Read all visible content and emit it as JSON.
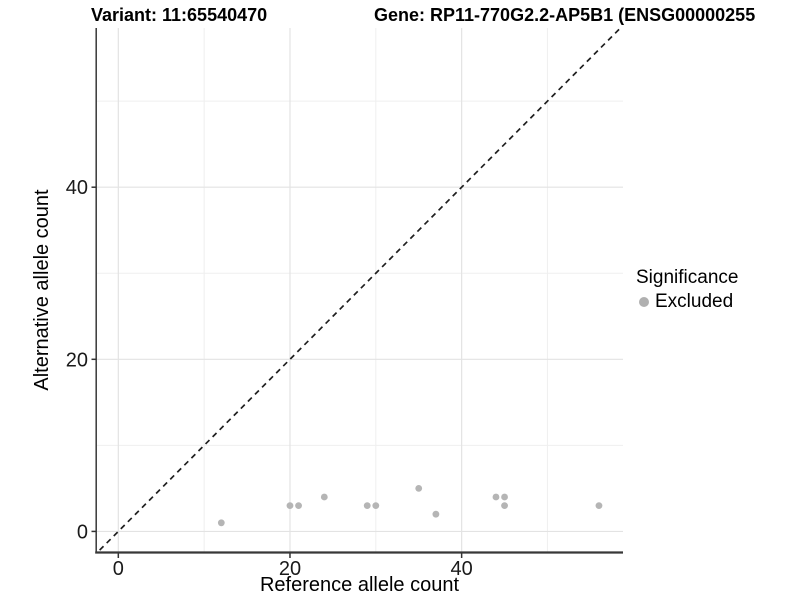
{
  "titles": {
    "left": "Variant: 11:65540470",
    "right": "Gene: RP11-770G2.2-AP5B1 (ENSG00000255"
  },
  "chart_data": {
    "type": "scatter",
    "xlabel": "Reference allele count",
    "ylabel": "Alternative allele count",
    "xlim": [
      -2.6,
      58.8
    ],
    "ylim": [
      -2.45,
      58.5
    ],
    "x_major_ticks": [
      0,
      20,
      40
    ],
    "y_major_ticks": [
      0,
      20,
      40
    ],
    "x_minor_ticks": [
      10,
      30,
      50
    ],
    "y_minor_ticks": [
      10,
      30,
      50
    ],
    "grid": true,
    "identity_line": {
      "equation": "y = x",
      "style": "dashed"
    },
    "series": [
      {
        "name": "Excluded",
        "color": "#b5b5b5",
        "points": [
          {
            "x": 12,
            "y": 1
          },
          {
            "x": 20,
            "y": 3
          },
          {
            "x": 21,
            "y": 3
          },
          {
            "x": 24,
            "y": 4
          },
          {
            "x": 29,
            "y": 3
          },
          {
            "x": 30,
            "y": 3
          },
          {
            "x": 35,
            "y": 5
          },
          {
            "x": 37,
            "y": 2
          },
          {
            "x": 44,
            "y": 4
          },
          {
            "x": 45,
            "y": 4
          },
          {
            "x": 45,
            "y": 3
          },
          {
            "x": 56,
            "y": 3
          }
        ]
      }
    ],
    "legend": {
      "title": "Significance",
      "position": "right",
      "items": [
        {
          "label": "Excluded",
          "color": "#b0b0b0"
        }
      ]
    }
  },
  "style_colors": {
    "grid_major": "#e3e3e3",
    "grid_minor": "#efefef",
    "axis_line": "#383838",
    "tick_mark": "#333333",
    "tick_text": "#1a1a1a",
    "identity_line": "#1f1f1f"
  }
}
